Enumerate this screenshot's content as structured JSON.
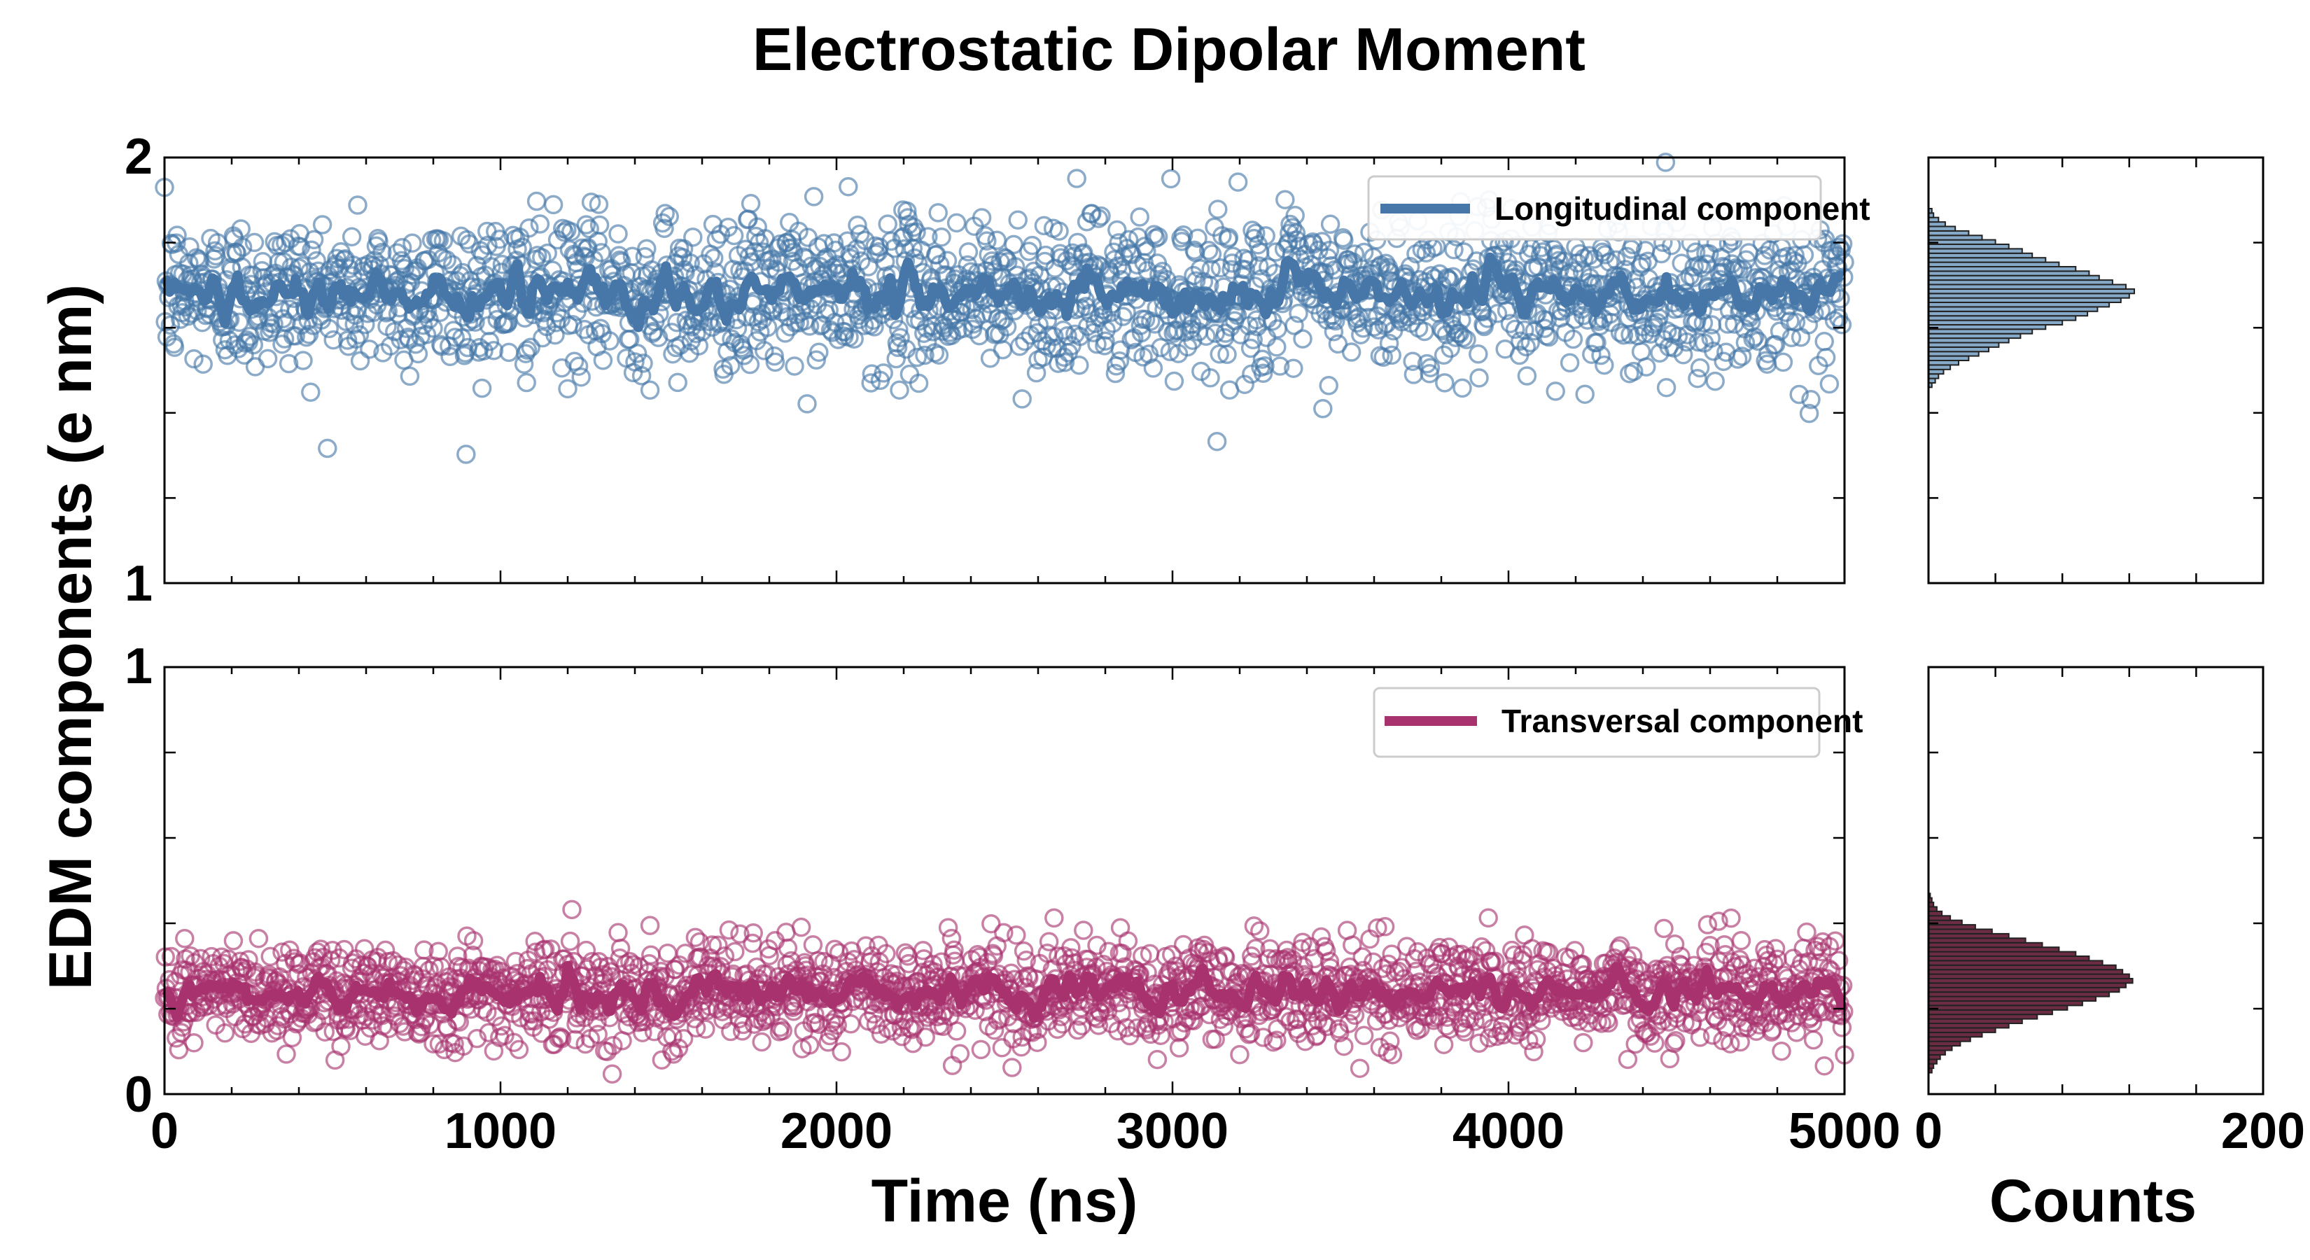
{
  "title": "Electrostatic Dipolar Moment",
  "ylabel": "EDM components (e nm)",
  "colors": {
    "longitudinal": "#4677a8",
    "transversal": "#a8326e",
    "hist_long": "#86a9c8",
    "hist_trans": "#6b2c44",
    "hist_edge": "#222222"
  },
  "chart_data": [
    {
      "id": "longitudinal-timeseries",
      "type": "scatter",
      "series_name": "Longitudinal component",
      "xlim": [
        0,
        5000
      ],
      "ylim": [
        1,
        2
      ],
      "xticks": [
        0,
        1000,
        2000,
        3000,
        4000,
        5000
      ],
      "yticks": [
        1,
        2
      ],
      "xlabel": "",
      "sample_interval_ns": 2.5,
      "mean": 1.68,
      "scatter_std": 0.09,
      "running_mean_std": 0.025,
      "legend": "Longitudinal component",
      "legend_position": "top-right"
    },
    {
      "id": "transversal-timeseries",
      "type": "scatter",
      "series_name": "Transversal component",
      "xlim": [
        0,
        5000
      ],
      "ylim": [
        0,
        1
      ],
      "xticks": [
        0,
        1000,
        2000,
        3000,
        4000,
        5000
      ],
      "xtick_labels": [
        "0",
        "1000",
        "2000",
        "3000",
        "4000",
        "5000"
      ],
      "yticks": [
        0,
        1
      ],
      "xlabel": "Time (ns)",
      "sample_interval_ns": 2.5,
      "mean": 0.24,
      "scatter_std": 0.06,
      "running_mean_std": 0.02,
      "legend": "Transversal component",
      "legend_position": "top-right"
    },
    {
      "id": "longitudinal-histogram",
      "type": "bar",
      "orientation": "horizontal",
      "xlim": [
        0,
        200
      ],
      "ylim": [
        1,
        2
      ],
      "bin_start": 1.46,
      "bin_width": 0.0105,
      "counts": [
        2,
        4,
        6,
        9,
        13,
        18,
        24,
        30,
        36,
        42,
        48,
        55,
        62,
        70,
        80,
        88,
        95,
        101,
        108,
        115,
        120,
        123,
        118,
        110,
        102,
        96,
        88,
        78,
        70,
        62,
        56,
        48,
        40,
        32,
        24,
        16,
        10,
        6,
        3,
        2
      ]
    },
    {
      "id": "transversal-histogram",
      "type": "bar",
      "orientation": "horizontal",
      "xlim": [
        0,
        200
      ],
      "ylim": [
        0,
        1
      ],
      "xticks": [
        0,
        200
      ],
      "xtick_labels": [
        "0",
        "200"
      ],
      "xlabel": "Counts",
      "bin_start": 0.05,
      "bin_width": 0.0105,
      "counts": [
        2,
        3,
        5,
        7,
        10,
        14,
        19,
        25,
        32,
        40,
        48,
        56,
        65,
        74,
        83,
        92,
        100,
        108,
        114,
        118,
        122,
        120,
        116,
        112,
        104,
        96,
        88,
        78,
        68,
        58,
        48,
        38,
        28,
        20,
        13,
        8,
        5,
        3,
        2,
        1
      ]
    }
  ]
}
